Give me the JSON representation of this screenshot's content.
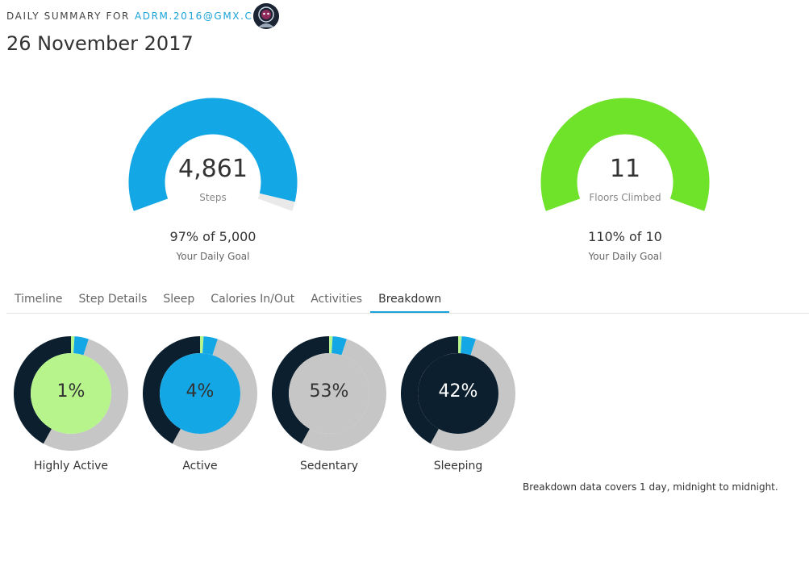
{
  "header": {
    "prefix": "DAILY SUMMARY FOR",
    "email": "ADRM.2016@GMX.CH",
    "date": "26 November 2017"
  },
  "gauges": [
    {
      "value": "4,861",
      "unit": "Steps",
      "percent_text": "97% of 5,000",
      "goal_label": "Your Daily Goal",
      "progress": 0.97,
      "color": "#13a7e6"
    },
    {
      "value": "11",
      "unit": "Floors Climbed",
      "percent_text": "110% of 10",
      "goal_label": "Your Daily Goal",
      "progress": 1.0,
      "color": "#6fe32a"
    }
  ],
  "tabs": [
    {
      "label": "Timeline",
      "active": false
    },
    {
      "label": "Step Details",
      "active": false
    },
    {
      "label": "Sleep",
      "active": false
    },
    {
      "label": "Calories In/Out",
      "active": false
    },
    {
      "label": "Activities",
      "active": false
    },
    {
      "label": "Breakdown",
      "active": true
    }
  ],
  "breakdown": {
    "items": [
      {
        "label": "Highly Active",
        "percent": "1%",
        "value": 1,
        "color": "#b7f58c"
      },
      {
        "label": "Active",
        "percent": "4%",
        "value": 4,
        "color": "#13a7e6"
      },
      {
        "label": "Sedentary",
        "percent": "53%",
        "value": 53,
        "color": "#c6c6c6"
      },
      {
        "label": "Sleeping",
        "percent": "42%",
        "value": 42,
        "color": "#0b1f2e"
      }
    ],
    "note": "Breakdown data covers 1 day, midnight to midnight."
  },
  "colors": {
    "accent": "#1ba3d9",
    "gauge_track": "#e9e9e9",
    "ring_highly_active": "#b7f58c",
    "ring_active": "#13a7e6",
    "ring_sedentary": "#c6c6c6",
    "ring_sleeping": "#0b1f2e"
  }
}
